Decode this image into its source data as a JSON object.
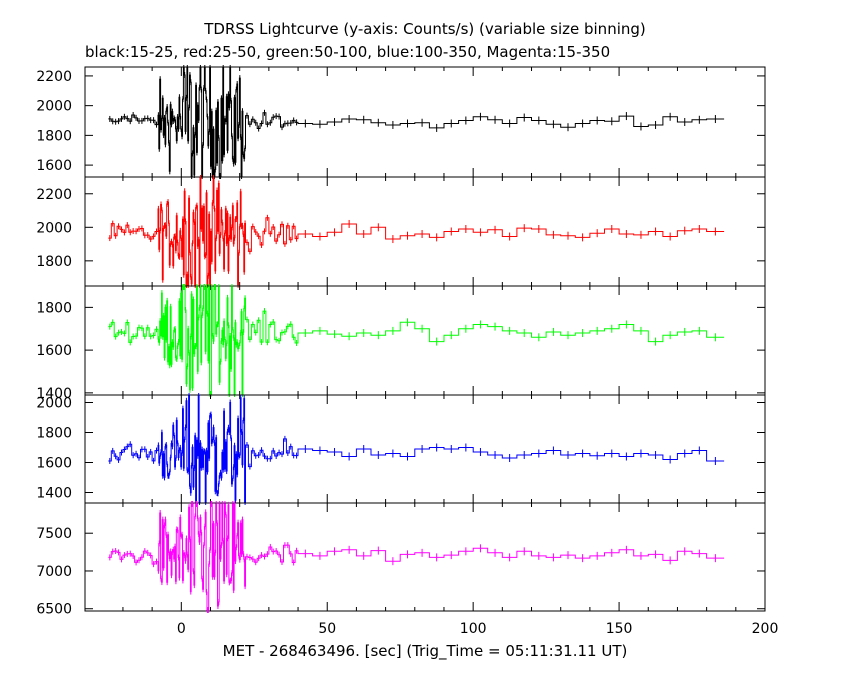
{
  "title": "TDRSS Lightcurve (y-axis: Counts/s) (variable size binning)",
  "subtitle": "black:15-25, red:25-50, green:50-100, blue:100-350, Magenta:15-350",
  "chart_data": {
    "type": "line",
    "title": "TDRSS Lightcurve (y-axis: Counts/s) (variable size binning)",
    "subtitle": "black:15-25, red:25-50, green:50-100, blue:100-350, Magenta:15-350",
    "xlabel": "MET - 268463496. [sec] (Trig_Time = 05:11:31.11 UT)",
    "ylabel": "Counts/s",
    "xlim": [
      -33,
      200
    ],
    "xticks": [
      0,
      50,
      100,
      150,
      200
    ],
    "grid": false,
    "legend": "none",
    "panels": [
      {
        "series": "15-25",
        "color": "#000000",
        "ylim": [
          1520,
          2260
        ],
        "yticks": [
          1600,
          1800,
          2000,
          2200
        ],
        "baseline": 1890,
        "noise_pre": 25,
        "noise_burst": 280,
        "noise_post": 18,
        "plateau": [
          [
            -25,
            -20,
            1900
          ],
          [
            -20,
            -15,
            1920
          ],
          [
            40,
            45,
            1880
          ],
          [
            45,
            50,
            1875
          ],
          [
            50,
            55,
            1890
          ],
          [
            55,
            60,
            1910
          ],
          [
            60,
            65,
            1905
          ],
          [
            65,
            70,
            1885
          ],
          [
            70,
            75,
            1870
          ],
          [
            75,
            80,
            1880
          ],
          [
            80,
            85,
            1885
          ],
          [
            85,
            90,
            1850
          ],
          [
            90,
            95,
            1880
          ],
          [
            95,
            100,
            1900
          ],
          [
            100,
            105,
            1925
          ],
          [
            105,
            110,
            1905
          ],
          [
            110,
            115,
            1880
          ],
          [
            115,
            120,
            1920
          ],
          [
            120,
            125,
            1900
          ],
          [
            125,
            130,
            1875
          ],
          [
            130,
            135,
            1855
          ],
          [
            135,
            140,
            1880
          ],
          [
            140,
            145,
            1900
          ],
          [
            145,
            150,
            1895
          ],
          [
            150,
            155,
            1930
          ],
          [
            155,
            160,
            1860
          ],
          [
            160,
            165,
            1870
          ],
          [
            165,
            170,
            1925
          ],
          [
            170,
            175,
            1890
          ],
          [
            175,
            180,
            1905
          ],
          [
            180,
            186,
            1910
          ]
        ]
      },
      {
        "series": "25-50",
        "color": "#ff0000",
        "ylim": [
          1650,
          2300
        ],
        "yticks": [
          1800,
          2000,
          2200
        ],
        "baseline": 1960,
        "noise_pre": 30,
        "noise_burst": 240,
        "noise_post": 25,
        "plateau": [
          [
            40,
            45,
            1960
          ],
          [
            45,
            50,
            1945
          ],
          [
            50,
            55,
            1970
          ],
          [
            55,
            60,
            2020
          ],
          [
            60,
            65,
            1960
          ],
          [
            65,
            70,
            2000
          ],
          [
            70,
            75,
            1930
          ],
          [
            75,
            80,
            1950
          ],
          [
            80,
            85,
            1960
          ],
          [
            85,
            90,
            1940
          ],
          [
            90,
            95,
            1975
          ],
          [
            95,
            100,
            1990
          ],
          [
            100,
            105,
            1970
          ],
          [
            105,
            110,
            1985
          ],
          [
            110,
            115,
            1945
          ],
          [
            115,
            120,
            1995
          ],
          [
            120,
            125,
            1990
          ],
          [
            125,
            130,
            1955
          ],
          [
            130,
            135,
            1950
          ],
          [
            135,
            140,
            1940
          ],
          [
            140,
            145,
            1965
          ],
          [
            145,
            150,
            1990
          ],
          [
            150,
            155,
            1960
          ],
          [
            155,
            160,
            1955
          ],
          [
            160,
            165,
            1975
          ],
          [
            165,
            170,
            1945
          ],
          [
            170,
            175,
            1980
          ],
          [
            175,
            180,
            1990
          ],
          [
            180,
            186,
            1975
          ]
        ]
      },
      {
        "series": "50-100",
        "color": "#00ff00",
        "ylim": [
          1390,
          1900
        ],
        "yticks": [
          1400,
          1600,
          1800
        ],
        "baseline": 1690,
        "noise_pre": 25,
        "noise_burst": 200,
        "noise_post": 20,
        "plateau": [
          [
            40,
            45,
            1680
          ],
          [
            45,
            50,
            1690
          ],
          [
            50,
            55,
            1675
          ],
          [
            55,
            60,
            1665
          ],
          [
            60,
            65,
            1680
          ],
          [
            65,
            70,
            1670
          ],
          [
            70,
            75,
            1690
          ],
          [
            75,
            80,
            1730
          ],
          [
            80,
            85,
            1700
          ],
          [
            85,
            90,
            1640
          ],
          [
            90,
            95,
            1670
          ],
          [
            95,
            100,
            1700
          ],
          [
            100,
            105,
            1720
          ],
          [
            105,
            110,
            1710
          ],
          [
            110,
            115,
            1690
          ],
          [
            115,
            120,
            1680
          ],
          [
            120,
            125,
            1660
          ],
          [
            125,
            130,
            1685
          ],
          [
            130,
            135,
            1670
          ],
          [
            135,
            140,
            1680
          ],
          [
            140,
            145,
            1690
          ],
          [
            145,
            150,
            1700
          ],
          [
            150,
            155,
            1720
          ],
          [
            155,
            160,
            1690
          ],
          [
            160,
            165,
            1640
          ],
          [
            165,
            170,
            1670
          ],
          [
            170,
            175,
            1685
          ],
          [
            175,
            180,
            1690
          ],
          [
            180,
            186,
            1660
          ]
        ]
      },
      {
        "series": "100-350",
        "color": "#0000ff",
        "ylim": [
          1330,
          2050
        ],
        "yticks": [
          1400,
          1600,
          1800,
          2000
        ],
        "baseline": 1660,
        "noise_pre": 35,
        "noise_burst": 230,
        "noise_post": 25,
        "plateau": [
          [
            40,
            45,
            1690
          ],
          [
            45,
            50,
            1680
          ],
          [
            50,
            55,
            1670
          ],
          [
            55,
            60,
            1640
          ],
          [
            60,
            65,
            1690
          ],
          [
            65,
            70,
            1650
          ],
          [
            70,
            75,
            1660
          ],
          [
            75,
            80,
            1640
          ],
          [
            80,
            85,
            1690
          ],
          [
            85,
            90,
            1700
          ],
          [
            90,
            95,
            1690
          ],
          [
            95,
            100,
            1700
          ],
          [
            100,
            105,
            1670
          ],
          [
            105,
            110,
            1650
          ],
          [
            110,
            115,
            1630
          ],
          [
            115,
            120,
            1650
          ],
          [
            120,
            125,
            1660
          ],
          [
            125,
            130,
            1680
          ],
          [
            130,
            135,
            1650
          ],
          [
            135,
            140,
            1660
          ],
          [
            140,
            145,
            1645
          ],
          [
            145,
            150,
            1660
          ],
          [
            150,
            155,
            1640
          ],
          [
            155,
            160,
            1660
          ],
          [
            160,
            165,
            1650
          ],
          [
            165,
            170,
            1620
          ],
          [
            170,
            175,
            1660
          ],
          [
            175,
            180,
            1680
          ],
          [
            180,
            186,
            1610
          ]
        ]
      },
      {
        "series": "15-350",
        "color": "#ff00ff",
        "ylim": [
          6470,
          7900
        ],
        "yticks": [
          6500,
          7000,
          7500
        ],
        "baseline": 7200,
        "noise_pre": 60,
        "noise_burst": 600,
        "noise_post": 50,
        "plateau": [
          [
            40,
            45,
            7230
          ],
          [
            45,
            50,
            7200
          ],
          [
            50,
            55,
            7260
          ],
          [
            55,
            60,
            7280
          ],
          [
            60,
            65,
            7200
          ],
          [
            65,
            70,
            7270
          ],
          [
            70,
            75,
            7130
          ],
          [
            75,
            80,
            7220
          ],
          [
            80,
            85,
            7240
          ],
          [
            85,
            90,
            7180
          ],
          [
            90,
            95,
            7210
          ],
          [
            95,
            100,
            7260
          ],
          [
            100,
            105,
            7300
          ],
          [
            105,
            110,
            7240
          ],
          [
            110,
            115,
            7180
          ],
          [
            115,
            120,
            7260
          ],
          [
            120,
            125,
            7200
          ],
          [
            125,
            130,
            7180
          ],
          [
            130,
            135,
            7210
          ],
          [
            135,
            140,
            7170
          ],
          [
            140,
            145,
            7200
          ],
          [
            145,
            150,
            7240
          ],
          [
            150,
            155,
            7280
          ],
          [
            155,
            160,
            7200
          ],
          [
            160,
            165,
            7220
          ],
          [
            165,
            170,
            7140
          ],
          [
            170,
            175,
            7260
          ],
          [
            175,
            180,
            7230
          ],
          [
            180,
            186,
            7170
          ]
        ]
      }
    ]
  }
}
